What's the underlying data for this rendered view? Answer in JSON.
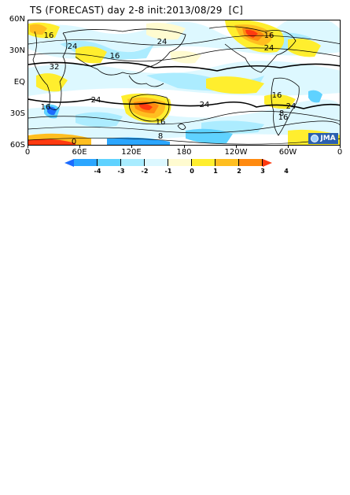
{
  "header": {
    "title": "TS (FORECAST) day 2-8 init:2013/08/29  [C]"
  },
  "axes": {
    "y_labels": [
      "60N",
      "30N",
      "EQ",
      "30S",
      "60S"
    ],
    "x_labels": [
      "0",
      "60E",
      "120E",
      "180",
      "120W",
      "60W",
      "0"
    ]
  },
  "map": {
    "contour_labels": [
      "16",
      "24",
      "16",
      "32",
      "24",
      "16",
      "24",
      "24",
      "16",
      "16",
      "24",
      "8",
      "16",
      "24",
      "16",
      "0",
      "8"
    ],
    "logo_text": "JMA"
  },
  "colorbar": {
    "labels": [
      "-4",
      "-3",
      "-2",
      "-1",
      "0",
      "1",
      "2",
      "3",
      "4"
    ],
    "colors": [
      "#1c6cff",
      "#2ba6ff",
      "#5fd2ff",
      "#a8ecff",
      "#dcf8ff",
      "#fffbd0",
      "#ffee2e",
      "#ffbe20",
      "#ff8a10",
      "#ff3a10"
    ]
  }
}
